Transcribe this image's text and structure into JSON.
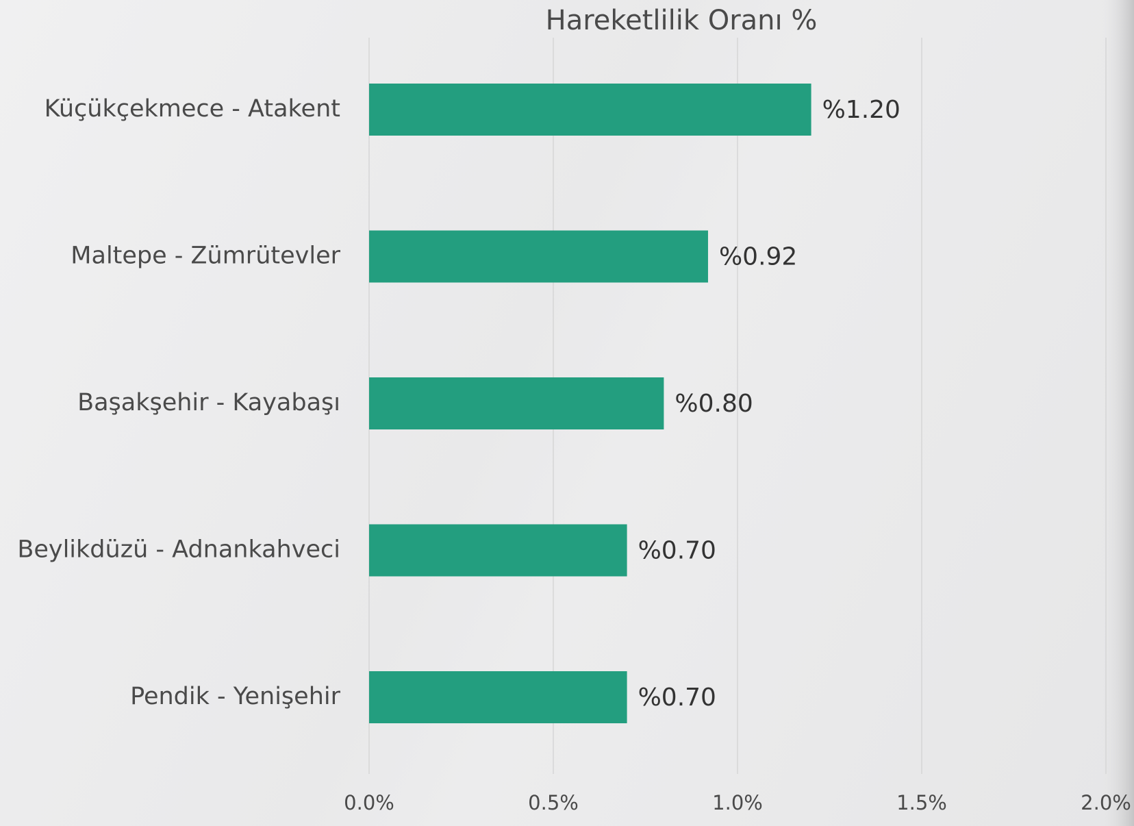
{
  "chart_data": {
    "type": "bar",
    "orientation": "horizontal",
    "title": "Hareketlilik Oranı %",
    "categories": [
      "Küçükçekmece - Atakent",
      "Maltepe - Zümrütevler",
      "Başakşehir - Kayabaşı",
      "Beylikdüzü - Adnankahveci",
      "Pendik - Yenişehir"
    ],
    "values": [
      1.2,
      0.92,
      0.8,
      0.7,
      0.7
    ],
    "value_labels": [
      "%1.20",
      "%0.92",
      "%0.80",
      "%0.70",
      "%0.70"
    ],
    "color": "#239e7f",
    "xlim": [
      0,
      2
    ],
    "xticks": [
      {
        "value": 0,
        "label": "0.0%"
      },
      {
        "value": 0.5,
        "label": "0.5%"
      },
      {
        "value": 1,
        "label": "1.0%"
      },
      {
        "value": 1.5,
        "label": "1.5%"
      },
      {
        "value": 2,
        "label": "2.0%"
      }
    ],
    "grid": true
  }
}
